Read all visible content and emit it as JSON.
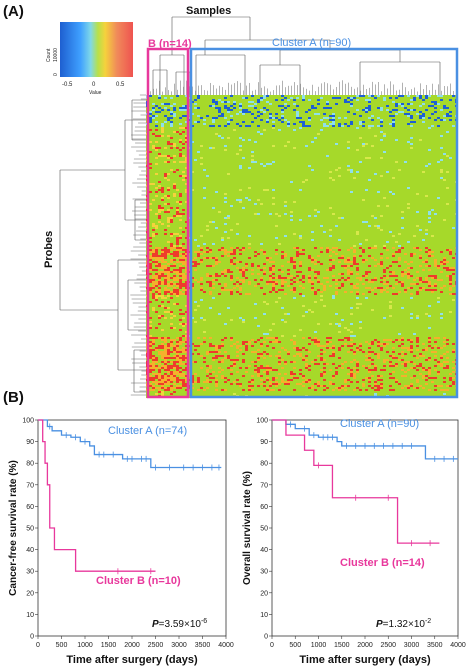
{
  "panel_a": {
    "label": "(A)",
    "samples_label": "Samples",
    "probes_label": "Probes",
    "cluster_a_label": "Cluster A (n=90)",
    "cluster_b_label": "B (n=14)",
    "color_key": {
      "count_label": "Count",
      "count_ticks": [
        "0",
        "10000"
      ],
      "value_ticks": [
        "-0.5",
        "0",
        "0.5"
      ],
      "value_label": "Value",
      "colors": [
        "#1e5fd0",
        "#3fa0ff",
        "#7fd8e8",
        "#b8e04a",
        "#f5d23c",
        "#f08a5a",
        "#ef5350"
      ]
    }
  },
  "panel_b": {
    "label": "(B)"
  },
  "colors": {
    "cluster_a": "#4a90e2",
    "cluster_b": "#e8389c",
    "heat_bg": "#a6d92a",
    "heat_red": "#ee3b2b",
    "heat_blue": "#1d5fd4",
    "heat_cyan": "#8fe0ea"
  },
  "chart_data": [
    {
      "type": "line",
      "panel": "left",
      "ylabel": "Cancer-free survival rate (%)",
      "xlabel": "Time after surgery (days)",
      "xlim": [
        0,
        4000
      ],
      "ylim": [
        0,
        100
      ],
      "x_ticks": [
        "0",
        "500",
        "1000",
        "1500",
        "2000",
        "2500",
        "3000",
        "3500",
        "4000"
      ],
      "y_ticks": [
        "0",
        "10",
        "20",
        "30",
        "40",
        "50",
        "60",
        "70",
        "80",
        "90",
        "100"
      ],
      "annotation": "P=3.59×10",
      "annotation_exp": "-6",
      "series": [
        {
          "name": "Cluster A (n=74)",
          "steps": [
            [
              0,
              100
            ],
            [
              200,
              97
            ],
            [
              300,
              95
            ],
            [
              500,
              93
            ],
            [
              700,
              92
            ],
            [
              900,
              90
            ],
            [
              1100,
              88
            ],
            [
              1200,
              84
            ],
            [
              1500,
              84
            ],
            [
              1800,
              82
            ],
            [
              2100,
              82
            ],
            [
              2400,
              78
            ],
            [
              3900,
              78
            ]
          ],
          "censors": [
            [
              250,
              97
            ],
            [
              600,
              93
            ],
            [
              800,
              92
            ],
            [
              1000,
              90
            ],
            [
              1300,
              84
            ],
            [
              1400,
              84
            ],
            [
              1600,
              84
            ],
            [
              1900,
              82
            ],
            [
              2000,
              82
            ],
            [
              2200,
              82
            ],
            [
              2300,
              82
            ],
            [
              2500,
              78
            ],
            [
              2800,
              78
            ],
            [
              3100,
              78
            ],
            [
              3300,
              78
            ],
            [
              3500,
              78
            ],
            [
              3700,
              78
            ],
            [
              3850,
              78
            ]
          ]
        },
        {
          "name": "Cluster B (n=10)",
          "steps": [
            [
              0,
              100
            ],
            [
              100,
              90
            ],
            [
              150,
              80
            ],
            [
              200,
              70
            ],
            [
              250,
              50
            ],
            [
              350,
              40
            ],
            [
              800,
              30
            ],
            [
              2500,
              30
            ]
          ],
          "censors": [
            [
              1700,
              30
            ],
            [
              2400,
              30
            ]
          ]
        }
      ]
    },
    {
      "type": "line",
      "panel": "right",
      "ylabel": "Overall survival rate (%)",
      "xlabel": "Time after surgery (days)",
      "xlim": [
        0,
        4000
      ],
      "ylim": [
        0,
        100
      ],
      "x_ticks": [
        "0",
        "500",
        "1000",
        "1500",
        "2000",
        "2500",
        "3000",
        "3500",
        "4000"
      ],
      "y_ticks": [
        "0",
        "10",
        "20",
        "30",
        "40",
        "50",
        "60",
        "70",
        "80",
        "90",
        "100"
      ],
      "annotation": "P=1.32×10",
      "annotation_exp": "-2",
      "series": [
        {
          "name": "Cluster A (n=90)",
          "steps": [
            [
              0,
              100
            ],
            [
              300,
              98
            ],
            [
              500,
              96
            ],
            [
              800,
              93
            ],
            [
              1000,
              92
            ],
            [
              1400,
              90
            ],
            [
              1500,
              88
            ],
            [
              3200,
              88
            ],
            [
              3300,
              82
            ],
            [
              4000,
              82
            ]
          ],
          "censors": [
            [
              400,
              98
            ],
            [
              700,
              96
            ],
            [
              900,
              93
            ],
            [
              1100,
              92
            ],
            [
              1200,
              92
            ],
            [
              1300,
              92
            ],
            [
              1600,
              88
            ],
            [
              1800,
              88
            ],
            [
              2000,
              88
            ],
            [
              2200,
              88
            ],
            [
              2400,
              88
            ],
            [
              2600,
              88
            ],
            [
              2800,
              88
            ],
            [
              3000,
              88
            ],
            [
              3500,
              82
            ],
            [
              3700,
              82
            ],
            [
              3900,
              82
            ]
          ]
        },
        {
          "name": "Cluster B (n=14)",
          "steps": [
            [
              0,
              100
            ],
            [
              300,
              93
            ],
            [
              700,
              86
            ],
            [
              900,
              79
            ],
            [
              1300,
              64
            ],
            [
              2700,
              43
            ],
            [
              3600,
              43
            ]
          ],
          "censors": [
            [
              1000,
              79
            ],
            [
              1800,
              64
            ],
            [
              2500,
              64
            ],
            [
              3000,
              43
            ],
            [
              3400,
              43
            ]
          ]
        }
      ]
    }
  ]
}
